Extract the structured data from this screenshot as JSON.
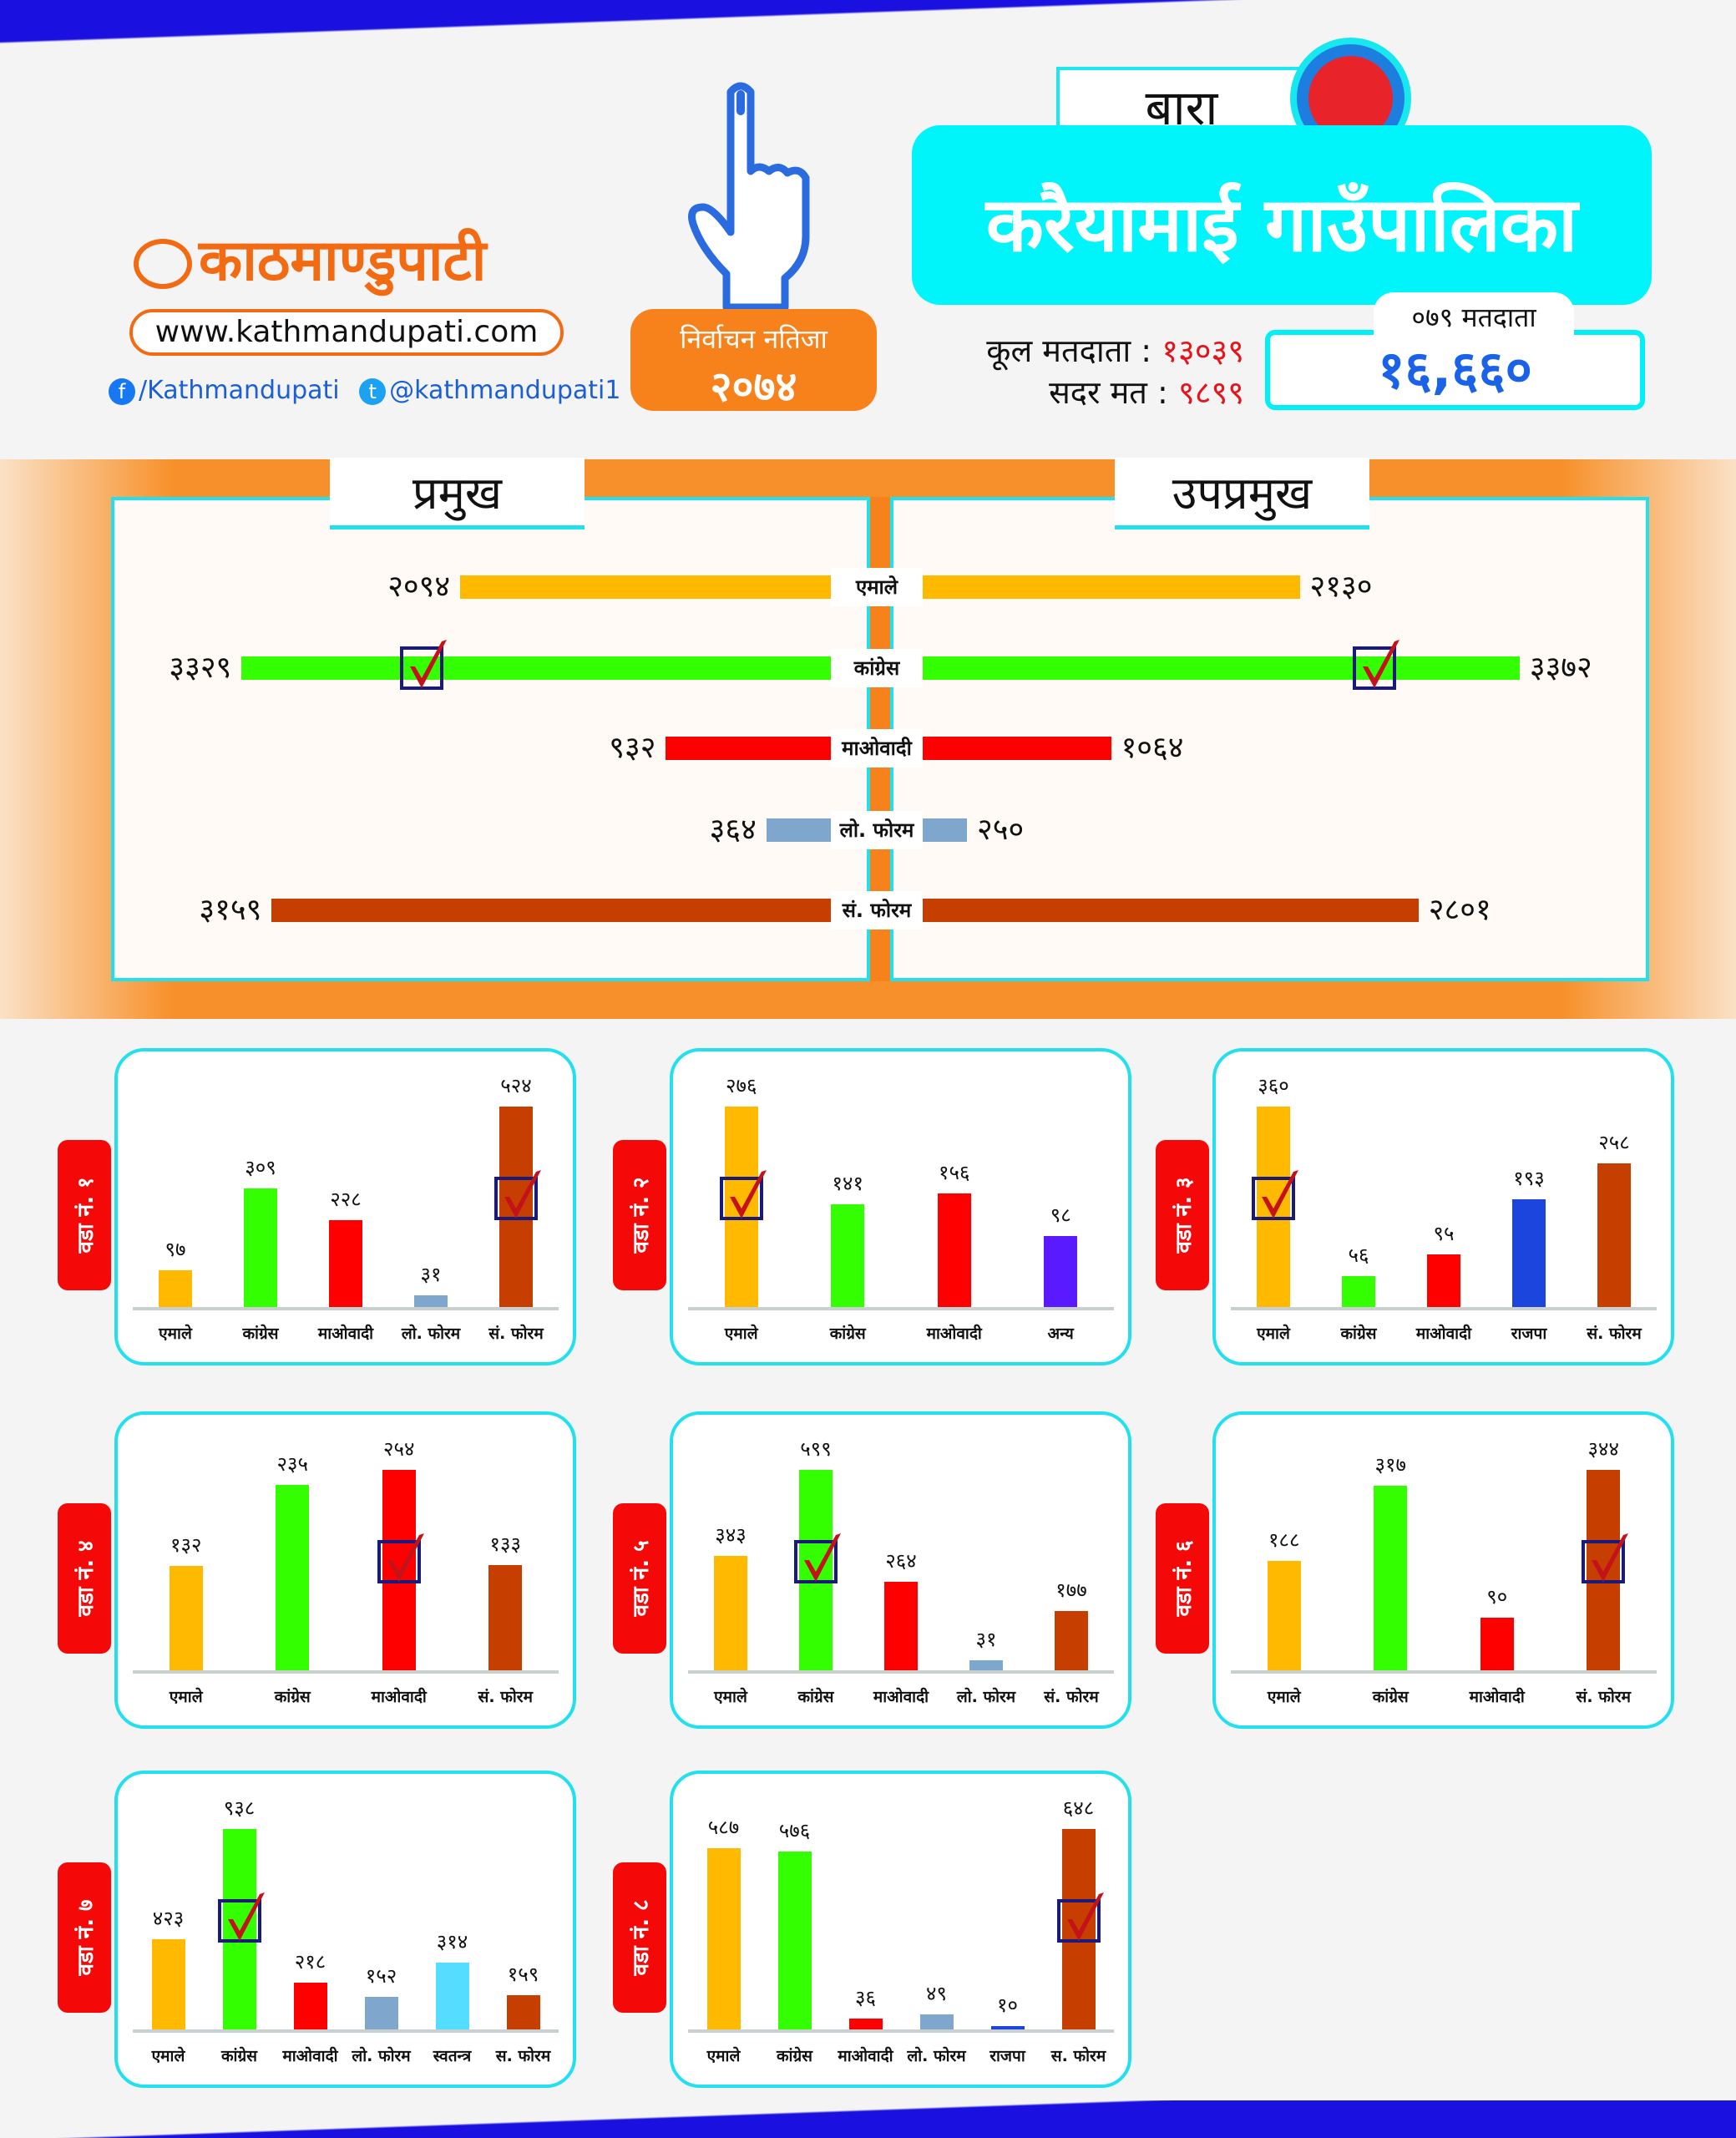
{
  "header": {
    "logo_text": "काठमाण्डुपाटी",
    "website": "www.kathmandupati.com",
    "facebook": "/Kathmandupati",
    "twitter": "@kathmandupati1",
    "badge_line1": "निर्वाचन नतिजा",
    "badge_line2": "२०७४",
    "district": "बारा",
    "municipality": "करैयामाई गाउँपालिका",
    "total_voters_label": "कूल मतदाता :",
    "total_voters_value": "१३०३९",
    "valid_votes_label": "सदर मत :",
    "valid_votes_value": "९८९९",
    "voters_079_label": "०७९ मतदाता",
    "voters_079_value": "१६,६६०"
  },
  "colors": {
    "एमाले": "#FFBA00",
    "कांग्रेस": "#33FF00",
    "माओवादी": "#FF0000",
    "लो. फोरम": "#7FA6CC",
    "सं. फोरम": "#C63F00",
    "स. फोरम": "#C63F00",
    "अन्य": "#5A1AFF",
    "राजपा": "#1B45DD",
    "स्वतन्त्र": "#55DDFF",
    "accent": "#22E0EE",
    "orange": "#F7821B"
  },
  "chart_data": [
    {
      "type": "bar",
      "orientation": "horizontal-butterfly",
      "left_title": "प्रमुख",
      "right_title": "उपप्रमुख",
      "categories": [
        "एमाले",
        "कांग्रेस",
        "माओवादी",
        "लो. फोरम",
        "सं. फोरम"
      ],
      "series": [
        {
          "name": "प्रमुख",
          "values": [
            2094,
            3329,
            932,
            364,
            3159
          ],
          "labels": [
            "२०९४",
            "३३२९",
            "९३२",
            "३६४",
            "३१५९"
          ],
          "winner": "कांग्रेस"
        },
        {
          "name": "उपप्रमुख",
          "values": [
            2130,
            3372,
            1064,
            250,
            2801
          ],
          "labels": [
            "२१३०",
            "३३७२",
            "१०६४",
            "२५०",
            "२८०१"
          ],
          "winner": "कांग्रेस"
        }
      ]
    },
    {
      "type": "bar",
      "title": "वडा नं. १",
      "categories": [
        "एमाले",
        "कांग्रेस",
        "माओवादी",
        "लो. फोरम",
        "सं. फोरम"
      ],
      "values": [
        97,
        309,
        228,
        31,
        524
      ],
      "labels": [
        "९७",
        "३०९",
        "२२८",
        "३१",
        "५२४"
      ],
      "winner": "सं. फोरम"
    },
    {
      "type": "bar",
      "title": "वडा नं. २",
      "categories": [
        "एमाले",
        "कांग्रेस",
        "माओवादी",
        "अन्य"
      ],
      "values": [
        276,
        141,
        156,
        98
      ],
      "labels": [
        "२७६",
        "१४१",
        "१५६",
        "९८"
      ],
      "winner": "एमाले"
    },
    {
      "type": "bar",
      "title": "वडा नं. ३",
      "categories": [
        "एमाले",
        "कांग्रेस",
        "माओवादी",
        "राजपा",
        "सं. फोरम"
      ],
      "values": [
        360,
        56,
        95,
        193,
        258
      ],
      "labels": [
        "३६०",
        "५६",
        "९५",
        "१९३",
        "२५८"
      ],
      "winner": "एमाले"
    },
    {
      "type": "bar",
      "title": "वडा नं. ४",
      "categories": [
        "एमाले",
        "कांग्रेस",
        "माओवादी",
        "सं. फोरम"
      ],
      "values": [
        132,
        235,
        254,
        133
      ],
      "labels": [
        "१३२",
        "२३५",
        "२५४",
        "१३३"
      ],
      "winner": "माओवादी"
    },
    {
      "type": "bar",
      "title": "वडा नं. ५",
      "categories": [
        "एमाले",
        "कांग्रेस",
        "माओवादी",
        "लो. फोरम",
        "सं. फोरम"
      ],
      "values": [
        343,
        599,
        264,
        31,
        177
      ],
      "labels": [
        "३४३",
        "५९९",
        "२६४",
        "३१",
        "१७७"
      ],
      "winner": "कांग्रेस"
    },
    {
      "type": "bar",
      "title": "वडा नं. ६",
      "categories": [
        "एमाले",
        "कांग्रेस",
        "माओवादी",
        "सं. फोरम"
      ],
      "values": [
        188,
        317,
        90,
        344
      ],
      "labels": [
        "१८८",
        "३१७",
        "९०",
        "३४४"
      ],
      "winner": "सं. फोरम"
    },
    {
      "type": "bar",
      "title": "वडा नं. ७",
      "categories": [
        "एमाले",
        "कांग्रेस",
        "माओवादी",
        "लो. फोरम",
        "स्वतन्त्र",
        "स. फोरम"
      ],
      "values": [
        423,
        938,
        218,
        152,
        314,
        159
      ],
      "labels": [
        "४२३",
        "९३८",
        "२१८",
        "१५२",
        "३१४",
        "१५९"
      ],
      "winner": "कांग्रेस"
    },
    {
      "type": "bar",
      "title": "वडा नं. ८",
      "categories": [
        "एमाले",
        "कांग्रेस",
        "माओवादी",
        "लो. फोरम",
        "राजपा",
        "स. फोरम"
      ],
      "values": [
        587,
        576,
        36,
        49,
        10,
        648
      ],
      "labels": [
        "५८७",
        "५७६",
        "३६",
        "४९",
        "१०",
        "६४८"
      ],
      "winner": "स. फोरम"
    }
  ]
}
